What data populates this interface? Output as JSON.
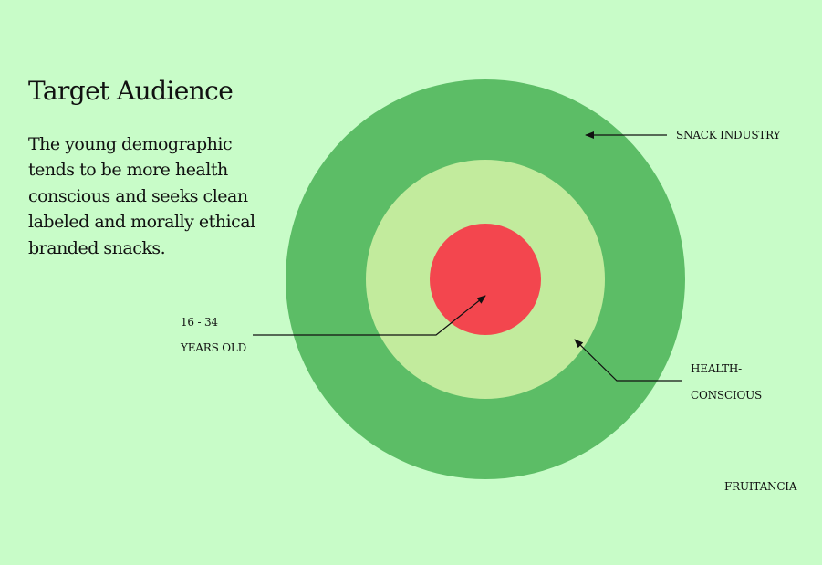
{
  "slide": {
    "title": "Target Audience",
    "description": "The young demographic tends to be more health conscious and seeks clean labeled and morally ethical branded snacks.",
    "brand": "FRUITANCIA",
    "background_color": "#c8fcc8"
  },
  "target_diagram": {
    "rings": [
      {
        "name": "snack-industry",
        "color": "#5cbd66"
      },
      {
        "name": "health-conscious",
        "color": "#c2eb9d"
      },
      {
        "name": "age-group",
        "color": "#f3464e"
      }
    ],
    "labels": {
      "outer": "SNACK INDUSTRY",
      "middle_line1": "HEALTH-",
      "middle_line2": "CONSCIOUS",
      "core_line1": "16 - 34",
      "core_line2": "YEARS OLD"
    },
    "pointer_color": "#111111"
  }
}
